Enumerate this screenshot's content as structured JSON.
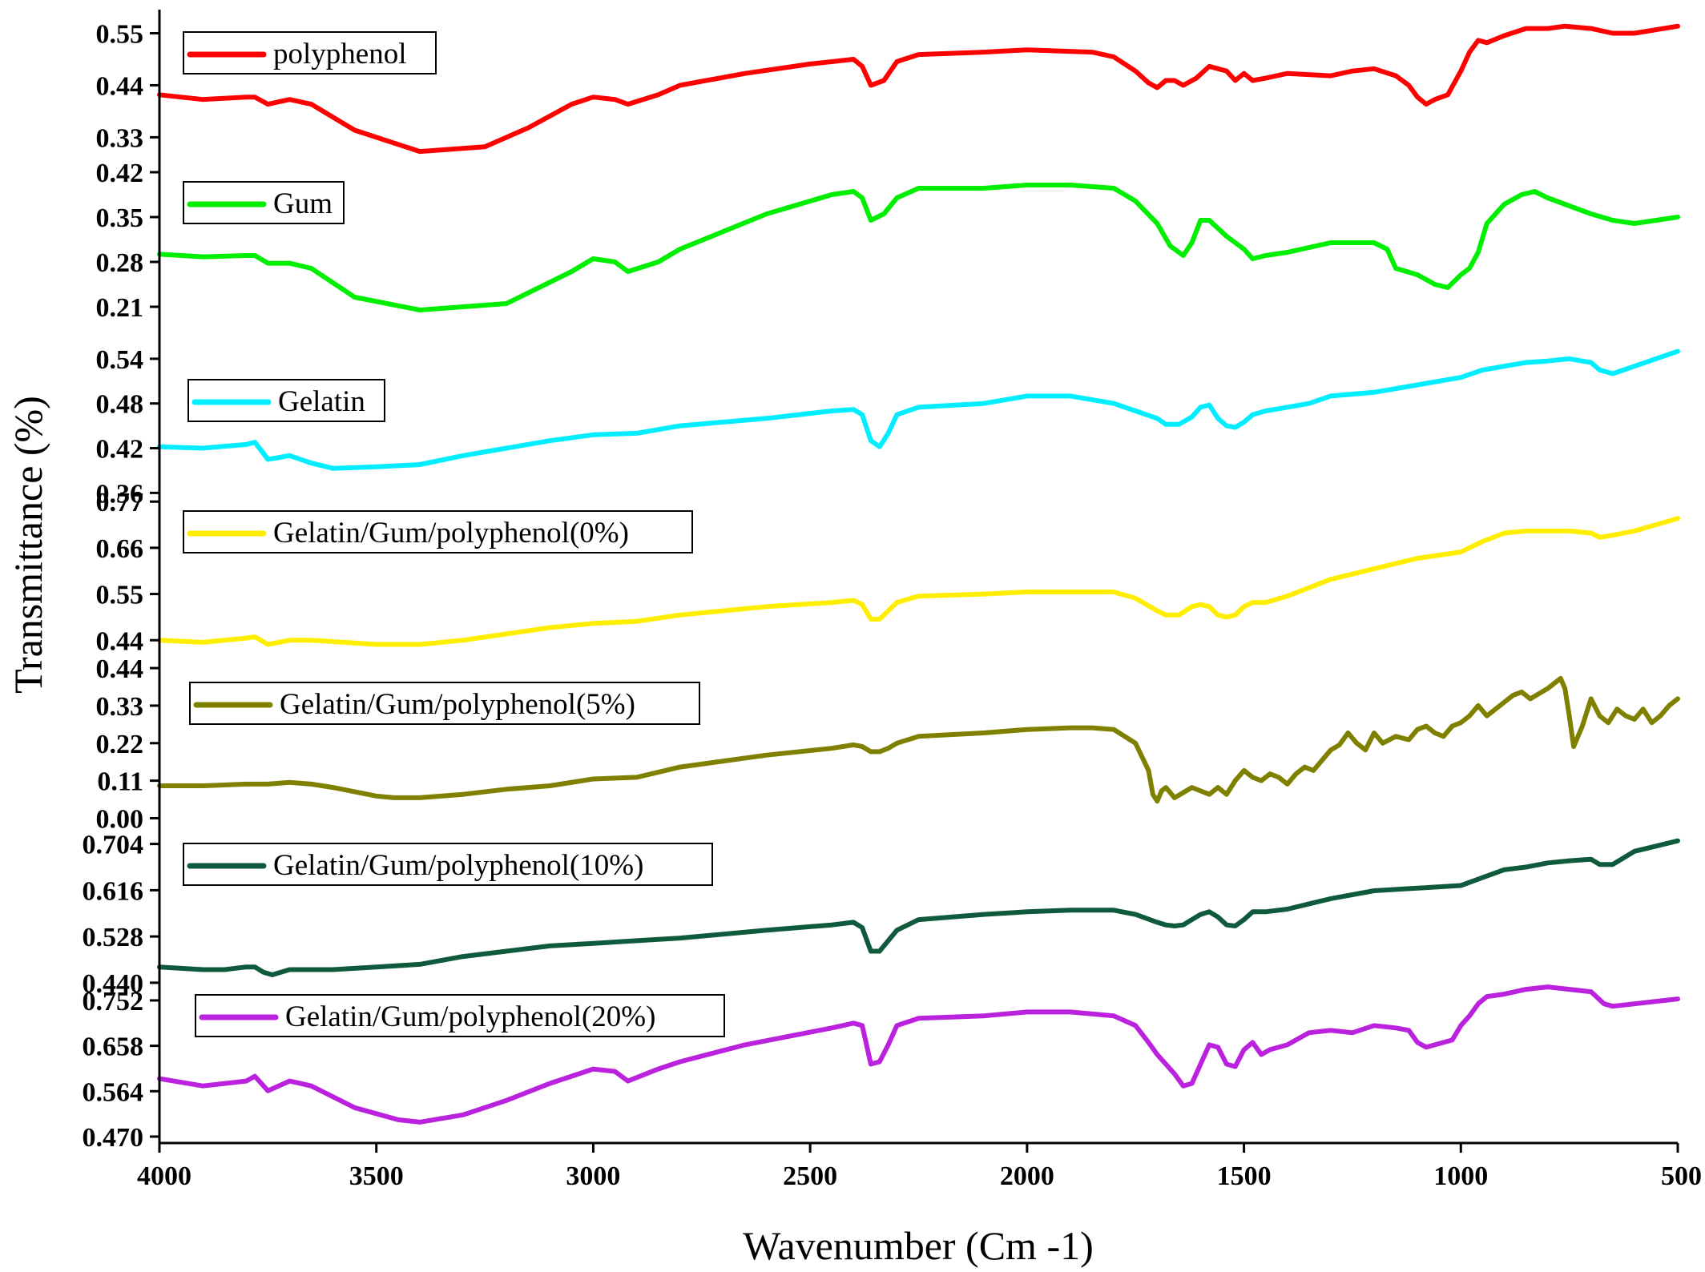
{
  "chart_data": {
    "type": "line",
    "xlabel": "Wavenumber (Cm -1)",
    "ylabel": "Transmittance (%)",
    "xlim": [
      4000,
      500
    ],
    "x_reversed": true,
    "x_ticks": [
      4000,
      3500,
      3000,
      2500,
      2000,
      1500,
      1000,
      500
    ],
    "grid": false,
    "legend_placement": "inside-left, one entry per stacked panel",
    "panels": [
      {
        "name": "polyphenol",
        "color": "#ff0000",
        "ylim": [
          0.29,
          0.6
        ],
        "y_ticks": [
          "0.55",
          "0.44",
          "0.33"
        ],
        "x": [
          4000,
          3900,
          3800,
          3780,
          3750,
          3700,
          3650,
          3550,
          3400,
          3250,
          3150,
          3050,
          3000,
          2950,
          2920,
          2850,
          2800,
          2650,
          2500,
          2400,
          2380,
          2360,
          2330,
          2300,
          2250,
          2100,
          2000,
          1850,
          1800,
          1750,
          1720,
          1700,
          1680,
          1660,
          1640,
          1610,
          1580,
          1540,
          1520,
          1500,
          1480,
          1450,
          1400,
          1300,
          1250,
          1200,
          1150,
          1120,
          1100,
          1080,
          1060,
          1030,
          1000,
          980,
          960,
          940,
          900,
          850,
          800,
          760,
          700,
          650,
          600,
          500
        ],
        "y": [
          0.42,
          0.41,
          0.415,
          0.415,
          0.4,
          0.41,
          0.4,
          0.345,
          0.3,
          0.31,
          0.35,
          0.4,
          0.415,
          0.41,
          0.4,
          0.42,
          0.44,
          0.465,
          0.485,
          0.495,
          0.48,
          0.44,
          0.45,
          0.49,
          0.505,
          0.51,
          0.515,
          0.51,
          0.5,
          0.47,
          0.445,
          0.435,
          0.45,
          0.45,
          0.44,
          0.455,
          0.48,
          0.47,
          0.45,
          0.465,
          0.45,
          0.455,
          0.465,
          0.46,
          0.47,
          0.475,
          0.46,
          0.44,
          0.415,
          0.4,
          0.41,
          0.42,
          0.47,
          0.51,
          0.535,
          0.53,
          0.545,
          0.56,
          0.56,
          0.565,
          0.56,
          0.55,
          0.55,
          0.565
        ]
      },
      {
        "name": "Gum",
        "color": "#00ee00",
        "ylim": [
          0.195,
          0.445
        ],
        "y_ticks": [
          "0.42",
          "0.35",
          "0.28",
          "0.21"
        ],
        "x": [
          4000,
          3900,
          3800,
          3780,
          3750,
          3700,
          3650,
          3550,
          3400,
          3200,
          3050,
          3000,
          2950,
          2920,
          2850,
          2800,
          2600,
          2450,
          2400,
          2380,
          2360,
          2330,
          2300,
          2250,
          2100,
          2000,
          1900,
          1800,
          1750,
          1700,
          1670,
          1640,
          1620,
          1600,
          1580,
          1540,
          1500,
          1480,
          1450,
          1400,
          1300,
          1250,
          1200,
          1170,
          1150,
          1100,
          1060,
          1030,
          1000,
          980,
          960,
          940,
          900,
          860,
          830,
          800,
          760,
          700,
          650,
          600,
          550,
          500
        ],
        "y": [
          0.292,
          0.288,
          0.29,
          0.29,
          0.278,
          0.278,
          0.27,
          0.225,
          0.205,
          0.215,
          0.265,
          0.285,
          0.28,
          0.265,
          0.28,
          0.3,
          0.355,
          0.385,
          0.39,
          0.38,
          0.345,
          0.355,
          0.38,
          0.395,
          0.395,
          0.4,
          0.4,
          0.395,
          0.375,
          0.34,
          0.305,
          0.29,
          0.31,
          0.345,
          0.345,
          0.32,
          0.3,
          0.285,
          0.29,
          0.295,
          0.31,
          0.31,
          0.31,
          0.3,
          0.27,
          0.26,
          0.245,
          0.24,
          0.26,
          0.27,
          0.295,
          0.34,
          0.37,
          0.385,
          0.39,
          0.38,
          0.37,
          0.355,
          0.345,
          0.34,
          0.345,
          0.35
        ]
      },
      {
        "name": "Gelatin",
        "color": "#00eeff",
        "ylim": [
          0.355,
          0.57
        ],
        "y_ticks": [
          "0.54",
          "0.48",
          "0.42",
          "0.36"
        ],
        "x": [
          4000,
          3900,
          3800,
          3780,
          3750,
          3700,
          3650,
          3600,
          3500,
          3400,
          3300,
          3200,
          3100,
          3000,
          2900,
          2800,
          2600,
          2450,
          2400,
          2380,
          2360,
          2340,
          2320,
          2300,
          2250,
          2100,
          2000,
          1900,
          1800,
          1750,
          1700,
          1680,
          1650,
          1620,
          1600,
          1580,
          1560,
          1540,
          1520,
          1500,
          1480,
          1450,
          1400,
          1350,
          1300,
          1200,
          1100,
          1000,
          950,
          900,
          850,
          800,
          750,
          700,
          680,
          650,
          600,
          500
        ],
        "y": [
          0.422,
          0.42,
          0.425,
          0.428,
          0.405,
          0.41,
          0.4,
          0.393,
          0.395,
          0.398,
          0.41,
          0.42,
          0.43,
          0.438,
          0.44,
          0.45,
          0.46,
          0.47,
          0.472,
          0.465,
          0.43,
          0.422,
          0.44,
          0.465,
          0.475,
          0.48,
          0.49,
          0.49,
          0.48,
          0.47,
          0.46,
          0.452,
          0.452,
          0.462,
          0.475,
          0.478,
          0.46,
          0.45,
          0.448,
          0.455,
          0.465,
          0.47,
          0.475,
          0.48,
          0.49,
          0.495,
          0.505,
          0.515,
          0.525,
          0.53,
          0.535,
          0.537,
          0.54,
          0.535,
          0.525,
          0.52,
          0.53,
          0.55
        ]
      },
      {
        "name": "Gelatin/Gum/polyphenol(0%)",
        "color": "#ffee00",
        "ylim": [
          0.41,
          0.82
        ],
        "y_ticks": [
          "0.77",
          "0.66",
          "0.55",
          "0.44"
        ],
        "x": [
          4000,
          3900,
          3800,
          3780,
          3750,
          3700,
          3650,
          3500,
          3400,
          3300,
          3200,
          3100,
          3000,
          2900,
          2800,
          2600,
          2450,
          2400,
          2380,
          2360,
          2340,
          2320,
          2300,
          2250,
          2100,
          2000,
          1900,
          1800,
          1750,
          1700,
          1680,
          1650,
          1620,
          1600,
          1580,
          1560,
          1540,
          1520,
          1500,
          1480,
          1450,
          1400,
          1300,
          1200,
          1100,
          1000,
          950,
          900,
          850,
          800,
          750,
          700,
          680,
          650,
          600,
          500
        ],
        "y": [
          0.44,
          0.435,
          0.445,
          0.448,
          0.43,
          0.44,
          0.44,
          0.43,
          0.43,
          0.44,
          0.455,
          0.47,
          0.48,
          0.485,
          0.5,
          0.52,
          0.53,
          0.535,
          0.525,
          0.49,
          0.49,
          0.51,
          0.53,
          0.545,
          0.55,
          0.555,
          0.555,
          0.555,
          0.54,
          0.51,
          0.5,
          0.5,
          0.52,
          0.525,
          0.52,
          0.5,
          0.495,
          0.5,
          0.52,
          0.53,
          0.53,
          0.545,
          0.585,
          0.61,
          0.635,
          0.65,
          0.675,
          0.695,
          0.7,
          0.7,
          0.7,
          0.695,
          0.685,
          0.69,
          0.7,
          0.73
        ]
      },
      {
        "name": "Gelatin/Gum/polyphenol(5%)",
        "color": "#808000",
        "ylim": [
          -0.02,
          0.52
        ],
        "y_ticks": [
          "0.44",
          "0.33",
          "0.22",
          "0.11",
          "0.00"
        ],
        "x": [
          4000,
          3900,
          3800,
          3780,
          3750,
          3700,
          3650,
          3600,
          3500,
          3460,
          3400,
          3300,
          3200,
          3100,
          3000,
          2900,
          2800,
          2600,
          2450,
          2400,
          2380,
          2360,
          2340,
          2320,
          2300,
          2250,
          2100,
          2000,
          1900,
          1850,
          1800,
          1750,
          1720,
          1710,
          1700,
          1690,
          1680,
          1660,
          1640,
          1620,
          1600,
          1580,
          1560,
          1540,
          1520,
          1500,
          1480,
          1460,
          1440,
          1420,
          1400,
          1380,
          1360,
          1340,
          1300,
          1280,
          1260,
          1240,
          1220,
          1200,
          1180,
          1150,
          1120,
          1100,
          1080,
          1060,
          1040,
          1020,
          1000,
          980,
          960,
          940,
          920,
          900,
          880,
          860,
          840,
          800,
          780,
          770,
          760,
          750,
          740,
          720,
          700,
          680,
          660,
          640,
          620,
          600,
          580,
          560,
          540,
          520,
          500
        ],
        "y": [
          0.095,
          0.095,
          0.1,
          0.1,
          0.1,
          0.105,
          0.1,
          0.09,
          0.065,
          0.06,
          0.06,
          0.07,
          0.085,
          0.095,
          0.115,
          0.12,
          0.15,
          0.185,
          0.205,
          0.215,
          0.21,
          0.195,
          0.195,
          0.205,
          0.22,
          0.24,
          0.25,
          0.26,
          0.265,
          0.265,
          0.26,
          0.22,
          0.14,
          0.07,
          0.05,
          0.08,
          0.09,
          0.06,
          0.075,
          0.09,
          0.08,
          0.07,
          0.09,
          0.07,
          0.11,
          0.14,
          0.12,
          0.11,
          0.13,
          0.12,
          0.1,
          0.13,
          0.15,
          0.14,
          0.2,
          0.215,
          0.25,
          0.22,
          0.2,
          0.25,
          0.22,
          0.24,
          0.23,
          0.26,
          0.27,
          0.25,
          0.24,
          0.27,
          0.28,
          0.3,
          0.33,
          0.3,
          0.32,
          0.34,
          0.36,
          0.37,
          0.35,
          0.38,
          0.4,
          0.41,
          0.38,
          0.3,
          0.21,
          0.27,
          0.35,
          0.3,
          0.28,
          0.32,
          0.3,
          0.29,
          0.32,
          0.28,
          0.3,
          0.33,
          0.35
        ]
      },
      {
        "name": "Gelatin/Gum/polyphenol(10%)",
        "color": "#0f5a3c",
        "ylim": [
          0.42,
          0.74
        ],
        "y_ticks": [
          "0.704",
          "0.616",
          "0.528",
          "0.440"
        ],
        "x": [
          4000,
          3900,
          3850,
          3800,
          3780,
          3760,
          3740,
          3700,
          3650,
          3600,
          3500,
          3400,
          3300,
          3200,
          3100,
          3000,
          2900,
          2800,
          2600,
          2450,
          2400,
          2380,
          2360,
          2340,
          2320,
          2300,
          2250,
          2100,
          2000,
          1900,
          1800,
          1750,
          1700,
          1680,
          1660,
          1640,
          1620,
          1600,
          1580,
          1560,
          1540,
          1520,
          1500,
          1480,
          1450,
          1400,
          1350,
          1300,
          1200,
          1100,
          1000,
          950,
          900,
          850,
          800,
          750,
          700,
          680,
          650,
          620,
          600,
          550,
          500
        ],
        "y": [
          0.47,
          0.465,
          0.465,
          0.47,
          0.47,
          0.46,
          0.455,
          0.465,
          0.465,
          0.465,
          0.47,
          0.475,
          0.49,
          0.5,
          0.51,
          0.515,
          0.52,
          0.525,
          0.54,
          0.55,
          0.555,
          0.545,
          0.5,
          0.5,
          0.52,
          0.54,
          0.56,
          0.57,
          0.575,
          0.578,
          0.578,
          0.57,
          0.555,
          0.55,
          0.548,
          0.55,
          0.56,
          0.57,
          0.575,
          0.565,
          0.55,
          0.548,
          0.56,
          0.575,
          0.575,
          0.58,
          0.59,
          0.6,
          0.615,
          0.62,
          0.625,
          0.64,
          0.655,
          0.66,
          0.668,
          0.672,
          0.675,
          0.665,
          0.665,
          0.68,
          0.69,
          0.7,
          0.71
        ]
      },
      {
        "name": "Gelatin/Gum/polyphenol(20%)",
        "color": "#bb22dd",
        "ylim": [
          0.46,
          0.8
        ],
        "y_ticks": [
          "0.752",
          "0.658",
          "0.564",
          "0.470"
        ],
        "x": [
          4000,
          3900,
          3800,
          3780,
          3750,
          3700,
          3650,
          3550,
          3450,
          3400,
          3300,
          3200,
          3100,
          3000,
          2950,
          2920,
          2850,
          2800,
          2650,
          2450,
          2400,
          2380,
          2360,
          2340,
          2320,
          2300,
          2250,
          2100,
          2000,
          1900,
          1800,
          1750,
          1720,
          1700,
          1680,
          1660,
          1640,
          1620,
          1600,
          1580,
          1560,
          1540,
          1520,
          1500,
          1480,
          1460,
          1440,
          1400,
          1350,
          1300,
          1250,
          1200,
          1150,
          1120,
          1100,
          1080,
          1060,
          1040,
          1020,
          1000,
          980,
          960,
          940,
          900,
          850,
          800,
          750,
          700,
          670,
          650,
          600,
          550,
          500
        ],
        "y": [
          0.59,
          0.575,
          0.585,
          0.595,
          0.565,
          0.585,
          0.575,
          0.53,
          0.505,
          0.5,
          0.515,
          0.545,
          0.58,
          0.61,
          0.605,
          0.585,
          0.61,
          0.625,
          0.66,
          0.695,
          0.705,
          0.7,
          0.62,
          0.625,
          0.66,
          0.7,
          0.715,
          0.72,
          0.728,
          0.728,
          0.72,
          0.7,
          0.665,
          0.64,
          0.62,
          0.6,
          0.575,
          0.58,
          0.62,
          0.66,
          0.655,
          0.62,
          0.615,
          0.65,
          0.665,
          0.64,
          0.65,
          0.66,
          0.685,
          0.69,
          0.685,
          0.7,
          0.695,
          0.69,
          0.665,
          0.655,
          0.66,
          0.665,
          0.67,
          0.7,
          0.72,
          0.745,
          0.76,
          0.765,
          0.775,
          0.78,
          0.775,
          0.77,
          0.745,
          0.74,
          0.745,
          0.75,
          0.755
        ]
      }
    ]
  }
}
